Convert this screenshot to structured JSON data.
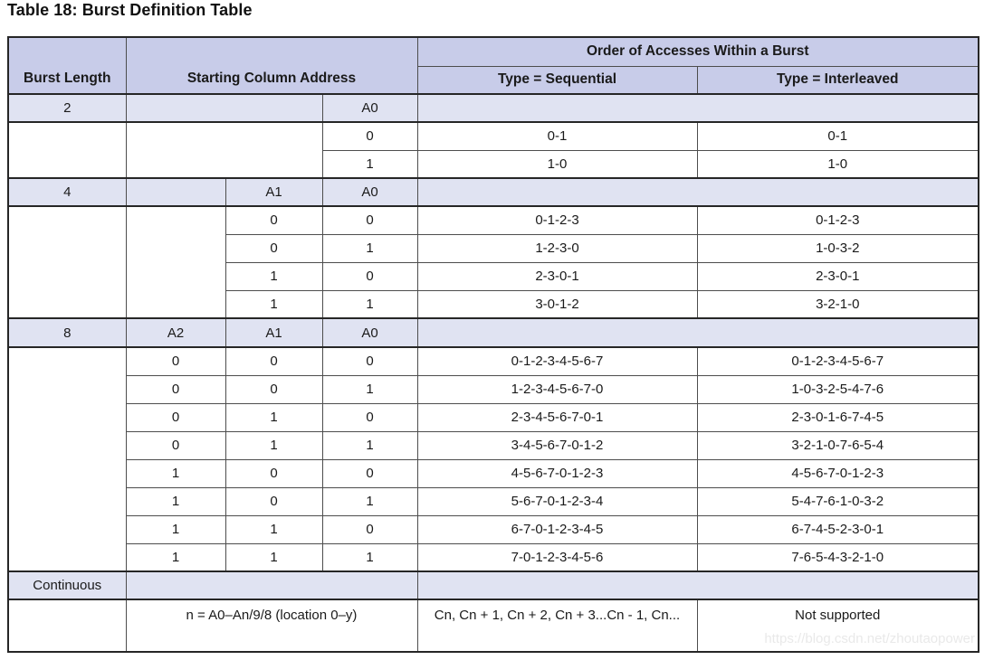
{
  "title": "Table 18: Burst Definition Table",
  "watermark": "https://blog.csdn.net/zhoutaopower",
  "colors": {
    "header_fill": "#c8cce9",
    "section_fill": "#e0e3f2",
    "border_light": "#4d4d4d",
    "border_heavy": "#262626",
    "text": "#1a1a1a",
    "watermark_text": "#e9e9e9"
  },
  "header": {
    "burst_length": "Burst Length",
    "starting_column_address": "Starting Column Address",
    "order_of_accesses": "Order of Accesses Within a Burst",
    "type_sequential": "Type = Sequential",
    "type_interleaved": "Type = Interleaved"
  },
  "sections": [
    {
      "label": "2",
      "addr_cols": [
        "A0"
      ],
      "rows": [
        {
          "addr": [
            "0"
          ],
          "seq": "0-1",
          "int": "0-1"
        },
        {
          "addr": [
            "1"
          ],
          "seq": "1-0",
          "int": "1-0"
        }
      ]
    },
    {
      "label": "4",
      "addr_cols": [
        "A1",
        "A0"
      ],
      "rows": [
        {
          "addr": [
            "0",
            "0"
          ],
          "seq": "0-1-2-3",
          "int": "0-1-2-3"
        },
        {
          "addr": [
            "0",
            "1"
          ],
          "seq": "1-2-3-0",
          "int": "1-0-3-2"
        },
        {
          "addr": [
            "1",
            "0"
          ],
          "seq": "2-3-0-1",
          "int": "2-3-0-1"
        },
        {
          "addr": [
            "1",
            "1"
          ],
          "seq": "3-0-1-2",
          "int": "3-2-1-0"
        }
      ]
    },
    {
      "label": "8",
      "addr_cols": [
        "A2",
        "A1",
        "A0"
      ],
      "rows": [
        {
          "addr": [
            "0",
            "0",
            "0"
          ],
          "seq": "0-1-2-3-4-5-6-7",
          "int": "0-1-2-3-4-5-6-7"
        },
        {
          "addr": [
            "0",
            "0",
            "1"
          ],
          "seq": "1-2-3-4-5-6-7-0",
          "int": "1-0-3-2-5-4-7-6"
        },
        {
          "addr": [
            "0",
            "1",
            "0"
          ],
          "seq": "2-3-4-5-6-7-0-1",
          "int": "2-3-0-1-6-7-4-5"
        },
        {
          "addr": [
            "0",
            "1",
            "1"
          ],
          "seq": "3-4-5-6-7-0-1-2",
          "int": "3-2-1-0-7-6-5-4"
        },
        {
          "addr": [
            "1",
            "0",
            "0"
          ],
          "seq": "4-5-6-7-0-1-2-3",
          "int": "4-5-6-7-0-1-2-3"
        },
        {
          "addr": [
            "1",
            "0",
            "1"
          ],
          "seq": "5-6-7-0-1-2-3-4",
          "int": "5-4-7-6-1-0-3-2"
        },
        {
          "addr": [
            "1",
            "1",
            "0"
          ],
          "seq": "6-7-0-1-2-3-4-5",
          "int": "6-7-4-5-2-3-0-1"
        },
        {
          "addr": [
            "1",
            "1",
            "1"
          ],
          "seq": "7-0-1-2-3-4-5-6",
          "int": "7-6-5-4-3-2-1-0"
        }
      ]
    },
    {
      "label": "Continuous",
      "addr_cols": [],
      "rows": [
        {
          "note": "n = A0–An/9/8 (location 0–y)",
          "seq": "Cn, Cn + 1, Cn + 2, Cn + 3...Cn - 1, Cn...",
          "int": "Not supported"
        }
      ]
    }
  ]
}
